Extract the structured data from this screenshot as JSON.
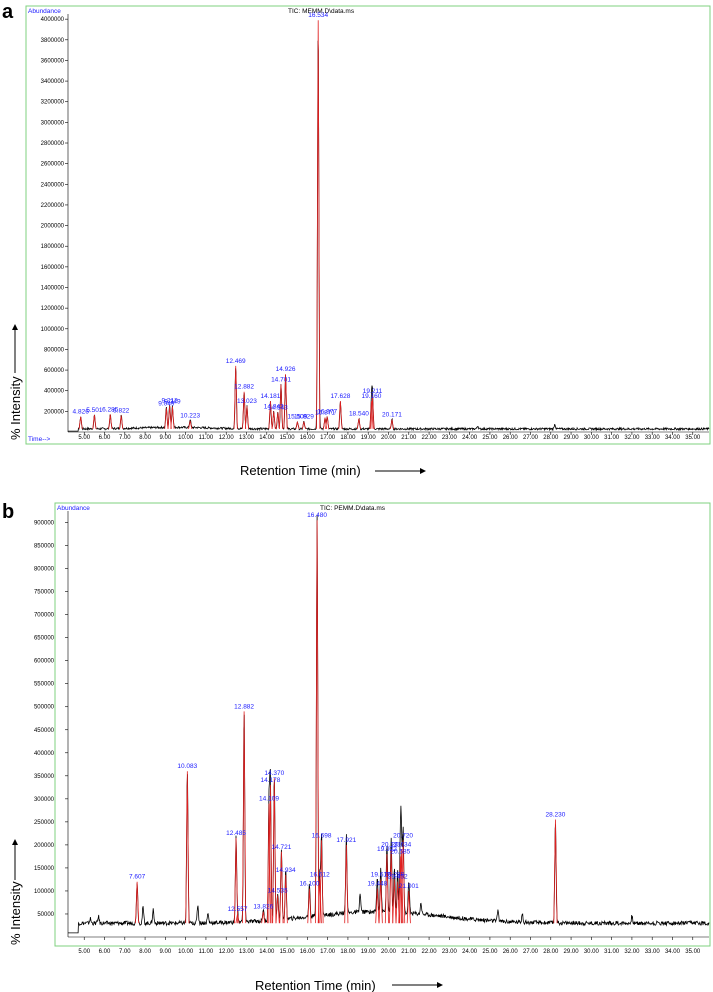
{
  "chart_data": [
    {
      "panel_label": "a",
      "type": "line",
      "title": "TIC: MEMM.D\\data.ms",
      "abundance_label": "Abundance",
      "time_label": "Time-->",
      "ylabel": "% Intensity",
      "xlabel": "Retention Time (min)",
      "xlim": [
        4.2,
        35.8
      ],
      "ylim": [
        0,
        4050000
      ],
      "y_ticks": [
        200000,
        400000,
        600000,
        800000,
        1000000,
        1200000,
        1400000,
        1600000,
        1800000,
        2000000,
        2200000,
        2400000,
        2600000,
        2800000,
        3000000,
        3200000,
        3400000,
        3600000,
        3800000,
        4000000
      ],
      "x_ticks": [
        5.0,
        6.0,
        7.0,
        8.0,
        9.0,
        10.0,
        11.0,
        12.0,
        13.0,
        14.0,
        15.0,
        16.0,
        17.0,
        18.0,
        19.0,
        20.0,
        21.0,
        22.0,
        23.0,
        24.0,
        25.0,
        26.0,
        27.0,
        28.0,
        29.0,
        30.0,
        31.0,
        32.0,
        33.0,
        34.0,
        35.0
      ],
      "baseline": 30000,
      "peaks": [
        {
          "x": 4.826,
          "y": 150000,
          "label": "4.826"
        },
        {
          "x": 5.501,
          "y": 165000,
          "label": "5.501"
        },
        {
          "x": 6.285,
          "y": 170000,
          "label": "6.285"
        },
        {
          "x": 6.822,
          "y": 160000,
          "label": "6.822"
        },
        {
          "x": 9.049,
          "y": 230000,
          "label": "9.049"
        },
        {
          "x": 9.212,
          "y": 255000,
          "label": "9.212"
        },
        {
          "x": 9.349,
          "y": 245000,
          "label": "9.349"
        },
        {
          "x": 10.223,
          "y": 110000,
          "label": "10.223"
        },
        {
          "x": 12.469,
          "y": 640000,
          "label": "12.469"
        },
        {
          "x": 12.882,
          "y": 390000,
          "label": "12.882"
        },
        {
          "x": 13.023,
          "y": 250000,
          "label": "13.023"
        },
        {
          "x": 14.181,
          "y": 300000,
          "label": "14.181"
        },
        {
          "x": 14.343,
          "y": 200000,
          "label": "14.343"
        },
        {
          "x": 14.543,
          "y": 190000,
          "label": "14.543"
        },
        {
          "x": 14.701,
          "y": 460000,
          "label": "14.701"
        },
        {
          "x": 14.926,
          "y": 560000,
          "label": "14.926"
        },
        {
          "x": 15.509,
          "y": 100000,
          "label": "15.509"
        },
        {
          "x": 15.829,
          "y": 100000,
          "label": "15.829"
        },
        {
          "x": 16.534,
          "y": 3990000,
          "label": "16.534"
        },
        {
          "x": 16.871,
          "y": 140000,
          "label": "16.871"
        },
        {
          "x": 16.977,
          "y": 150000,
          "label": "16.977"
        },
        {
          "x": 17.628,
          "y": 300000,
          "label": "17.628"
        },
        {
          "x": 18.54,
          "y": 130000,
          "label": "18.540"
        },
        {
          "x": 19.211,
          "y": 350000,
          "label": "19.211"
        },
        {
          "x": 19.16,
          "y": 300000,
          "label": "19.160"
        },
        {
          "x": 20.171,
          "y": 120000,
          "label": "20.171"
        }
      ],
      "extra_peaks": [
        {
          "x": 24.4,
          "y": 60000
        },
        {
          "x": 28.2,
          "y": 75000
        }
      ]
    },
    {
      "panel_label": "b",
      "type": "line",
      "title": "TIC: PEMM.D\\data.ms",
      "abundance_label": "Abundance",
      "time_label": "Time-->",
      "ylabel": "% Intensity",
      "xlabel": "Retention Time (min)",
      "xlim": [
        4.2,
        35.8
      ],
      "ylim": [
        0,
        925000
      ],
      "y_ticks": [
        50000,
        100000,
        150000,
        200000,
        250000,
        300000,
        350000,
        400000,
        450000,
        500000,
        550000,
        600000,
        650000,
        700000,
        750000,
        800000,
        850000,
        900000
      ],
      "x_ticks": [
        5.0,
        6.0,
        7.0,
        8.0,
        9.0,
        10.0,
        11.0,
        12.0,
        13.0,
        14.0,
        15.0,
        16.0,
        17.0,
        18.0,
        19.0,
        20.0,
        21.0,
        22.0,
        23.0,
        24.0,
        25.0,
        26.0,
        27.0,
        28.0,
        29.0,
        30.0,
        31.0,
        32.0,
        33.0,
        34.0,
        35.0
      ],
      "baseline": 30000,
      "peaks": [
        {
          "x": 7.607,
          "y": 120000,
          "label": "7.607"
        },
        {
          "x": 10.083,
          "y": 360000,
          "label": "10.083"
        },
        {
          "x": 12.485,
          "y": 215000,
          "label": "12.485"
        },
        {
          "x": 12.557,
          "y": 50000,
          "label": "12.557"
        },
        {
          "x": 12.882,
          "y": 490000,
          "label": "12.882"
        },
        {
          "x": 13.826,
          "y": 55000,
          "label": "13.826"
        },
        {
          "x": 14.109,
          "y": 290000,
          "label": "14.109"
        },
        {
          "x": 14.178,
          "y": 330000,
          "label": "14.178"
        },
        {
          "x": 14.37,
          "y": 345000,
          "label": "14.370"
        },
        {
          "x": 14.535,
          "y": 90000,
          "label": "14.535"
        },
        {
          "x": 14.721,
          "y": 185000,
          "label": "14.721"
        },
        {
          "x": 14.934,
          "y": 135000,
          "label": "14.934"
        },
        {
          "x": 16.1,
          "y": 105000,
          "label": "16.100"
        },
        {
          "x": 16.48,
          "y": 905000,
          "label": "16.480"
        },
        {
          "x": 16.612,
          "y": 125000,
          "label": "16.612"
        },
        {
          "x": 16.698,
          "y": 210000,
          "label": "16.698"
        },
        {
          "x": 17.921,
          "y": 200000,
          "label": "17.921"
        },
        {
          "x": 19.448,
          "y": 105000,
          "label": "19.448"
        },
        {
          "x": 19.617,
          "y": 125000,
          "label": "19.617"
        },
        {
          "x": 19.922,
          "y": 180000,
          "label": "19.922"
        },
        {
          "x": 20.131,
          "y": 190000,
          "label": "20.131"
        },
        {
          "x": 20.289,
          "y": 125000,
          "label": "20.289"
        },
        {
          "x": 20.452,
          "y": 120000,
          "label": "20.452"
        },
        {
          "x": 20.585,
          "y": 175000,
          "label": "20.585"
        },
        {
          "x": 20.634,
          "y": 190000,
          "label": "20.634"
        },
        {
          "x": 20.72,
          "y": 210000,
          "label": "20.720"
        },
        {
          "x": 21.001,
          "y": 100000,
          "label": "21.001"
        },
        {
          "x": 28.23,
          "y": 255000,
          "label": "28.230"
        }
      ],
      "extra_peaks": [
        {
          "x": 5.3,
          "y": 40000
        },
        {
          "x": 5.7,
          "y": 45000
        },
        {
          "x": 7.9,
          "y": 65000
        },
        {
          "x": 8.4,
          "y": 60000
        },
        {
          "x": 10.6,
          "y": 70000
        },
        {
          "x": 11.1,
          "y": 50000
        },
        {
          "x": 18.6,
          "y": 70000
        },
        {
          "x": 21.6,
          "y": 55000
        },
        {
          "x": 25.4,
          "y": 55000
        },
        {
          "x": 26.6,
          "y": 50000
        },
        {
          "x": 32.0,
          "y": 45000
        }
      ]
    }
  ]
}
